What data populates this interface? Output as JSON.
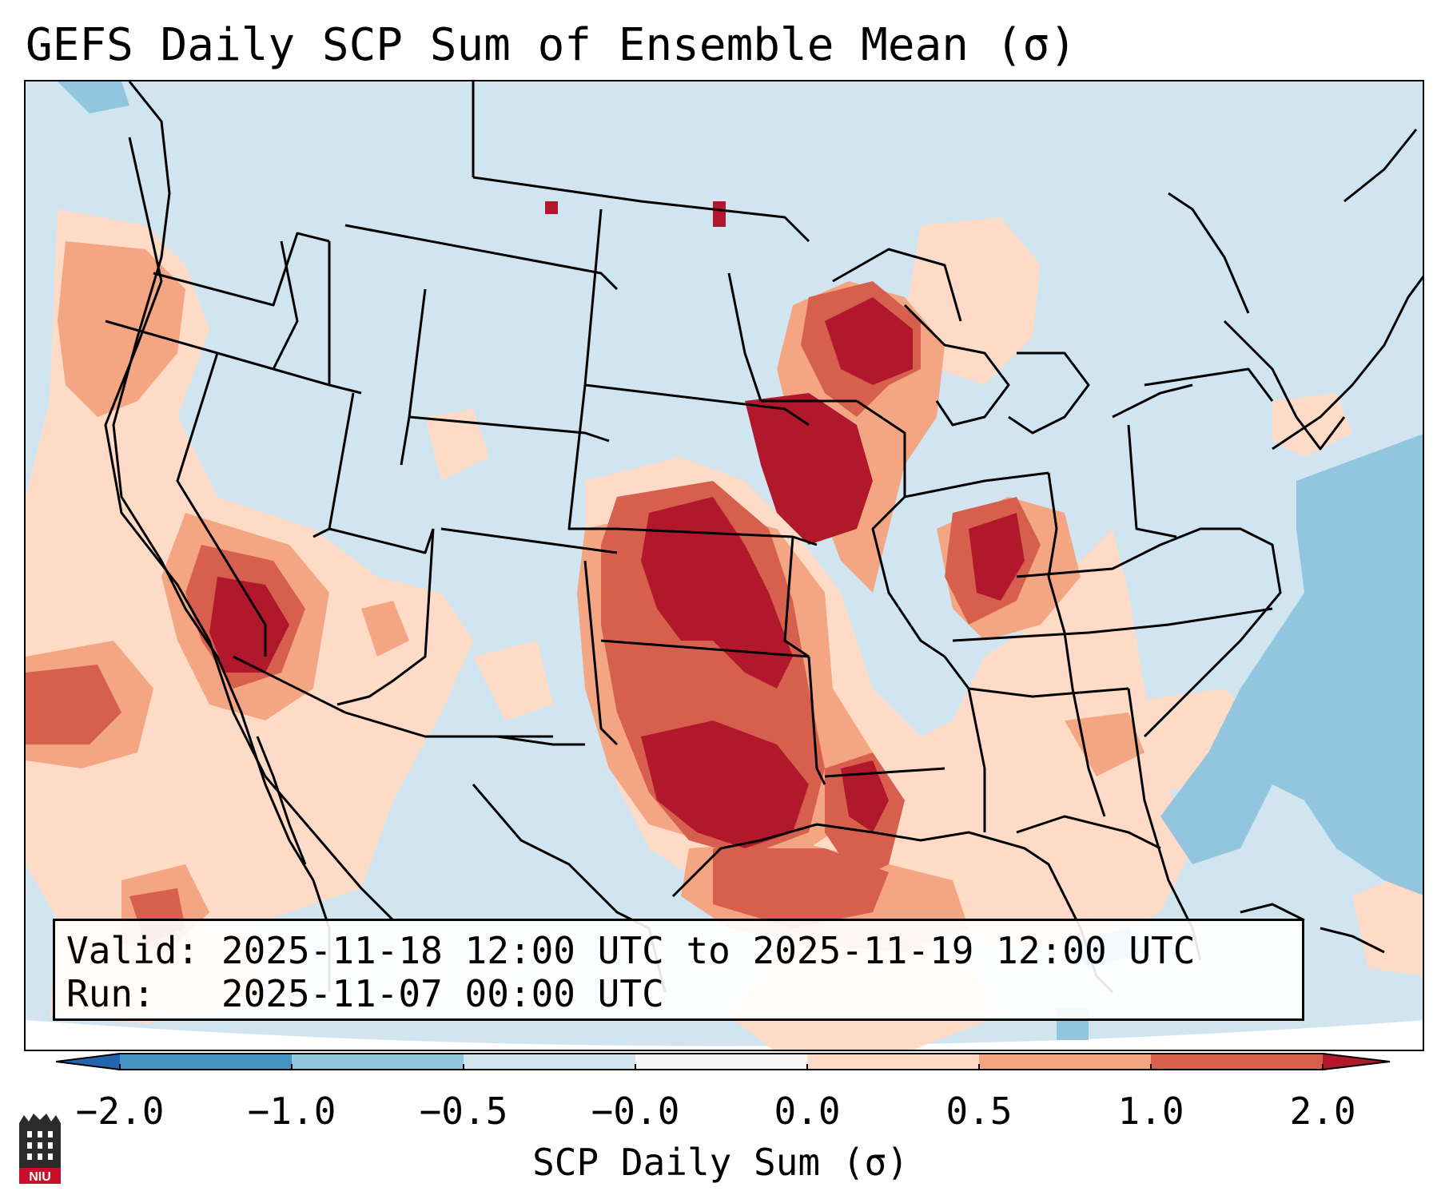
{
  "title": "GEFS Daily SCP Sum of Ensemble Mean (σ)",
  "info_box": {
    "valid_label": "Valid:",
    "valid_value": "2025-11-18 12:00 UTC to 2025-11-19 12:00 UTC",
    "run_label": "Run:",
    "run_value": "2025-11-07 00:00 UTC"
  },
  "colorbar": {
    "label": "SCP Daily Sum (σ)",
    "ticks": [
      "−2.0",
      "−1.0",
      "−0.5",
      "−0.0",
      "0.0",
      "0.5",
      "1.0",
      "2.0"
    ],
    "bins": [
      {
        "range": "< -2.0",
        "color": "#2166ac"
      },
      {
        "range": "-2.0 to -1.0",
        "color": "#4393c3"
      },
      {
        "range": "-1.0 to -0.5",
        "color": "#92c5de"
      },
      {
        "range": "-0.5 to -0.0",
        "color": "#d1e5f0"
      },
      {
        "range": "-0.0 to 0.0",
        "color": "#f7f7f7"
      },
      {
        "range": "0.0 to 0.5",
        "color": "#fddbc7"
      },
      {
        "range": "0.5 to 1.0",
        "color": "#f4a582"
      },
      {
        "range": "1.0 to 2.0",
        "color": "#d6604d"
      },
      {
        "range": "> 2.0",
        "color": "#b2182b"
      }
    ]
  },
  "map": {
    "domain": "Contiguous United States",
    "icons": [
      "niu-logo-icon"
    ],
    "logo_text": "NIU"
  }
}
